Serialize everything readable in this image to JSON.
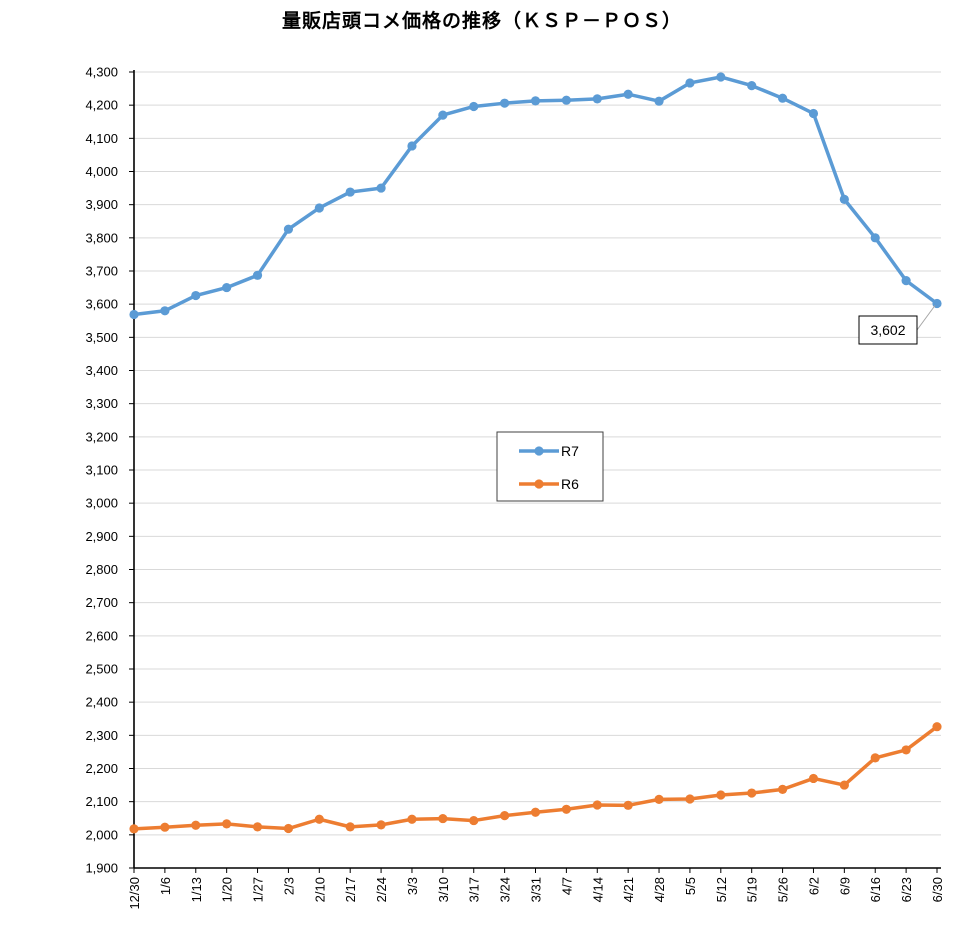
{
  "chart_data": {
    "type": "line",
    "title": "量販店頭コメ価格の推移（ＫＳＰ－ＰＯＳ）",
    "categories": [
      "12/30",
      "1/6",
      "1/13",
      "1/20",
      "1/27",
      "2/3",
      "2/10",
      "2/17",
      "2/24",
      "3/3",
      "3/10",
      "3/17",
      "3/24",
      "3/31",
      "4/7",
      "4/14",
      "4/21",
      "4/28",
      "5/5",
      "5/12",
      "5/19",
      "5/26",
      "6/2",
      "6/9",
      "6/16",
      "6/23",
      "6/30"
    ],
    "ylim": [
      1900,
      4300
    ],
    "yticks": [
      1900,
      2000,
      2100,
      2200,
      2300,
      2400,
      2500,
      2600,
      2700,
      2800,
      2900,
      3000,
      3100,
      3200,
      3300,
      3400,
      3500,
      3600,
      3700,
      3800,
      3900,
      4000,
      4100,
      4200,
      4300
    ],
    "ytick_labels": [
      "1,900",
      "2,000",
      "2,100",
      "2,200",
      "2,300",
      "2,400",
      "2,500",
      "2,600",
      "2,700",
      "2,800",
      "2,900",
      "3,000",
      "3,100",
      "3,200",
      "3,300",
      "3,400",
      "3,500",
      "3,600",
      "3,700",
      "3,800",
      "3,900",
      "4,000",
      "4,100",
      "4,200",
      "4,300"
    ],
    "grid": true,
    "legend_position": "center",
    "series": [
      {
        "name": "R7",
        "color": "#5b9bd5",
        "values": [
          3569,
          3580,
          3626,
          3650,
          3687,
          3826,
          3890,
          3938,
          3950,
          4077,
          4170,
          4196,
          4206,
          4213,
          4215,
          4219,
          4233,
          4212,
          4267,
          4285,
          4259,
          4221,
          4175,
          3916,
          3800,
          3671,
          3602
        ]
      },
      {
        "name": "R6",
        "color": "#ed7d31",
        "values": [
          2018,
          2023,
          2029,
          2033,
          2024,
          2019,
          2047,
          2024,
          2030,
          2047,
          2049,
          2043,
          2058,
          2068,
          2077,
          2090,
          2089,
          2107,
          2108,
          2120,
          2126,
          2137,
          2170,
          2150,
          2232,
          2256,
          2326
        ]
      }
    ],
    "annotations": [
      {
        "series": "R7",
        "category": "6/30",
        "text": "3,602"
      }
    ]
  }
}
